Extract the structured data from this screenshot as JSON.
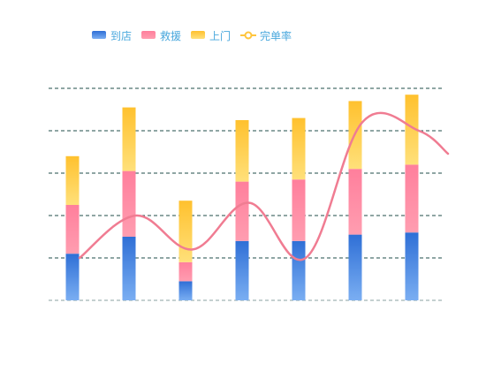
{
  "chart_data": {
    "type": "bar",
    "stacked": true,
    "categories": [
      "",
      "",
      "",
      "",
      "",
      "",
      ""
    ],
    "series": [
      {
        "name": "到店",
        "color": "#3a78d8",
        "values": [
          11,
          15,
          4.5,
          14,
          14,
          15.5,
          16
        ]
      },
      {
        "name": "救援",
        "color": "#ff8aa2",
        "values": [
          11.5,
          15.5,
          4.5,
          14,
          14.5,
          15.5,
          16
        ]
      },
      {
        "name": "上门",
        "color": "#ffc53d",
        "values": [
          11.5,
          15,
          14.5,
          14.5,
          14.5,
          16,
          16.5
        ]
      }
    ],
    "line_series": {
      "name": "完单率",
      "color": "#f07c92",
      "values": [
        10,
        20,
        12,
        23,
        10,
        42,
        40
      ]
    },
    "ylim": [
      0,
      50
    ],
    "grid": true,
    "legend_position": "top"
  }
}
